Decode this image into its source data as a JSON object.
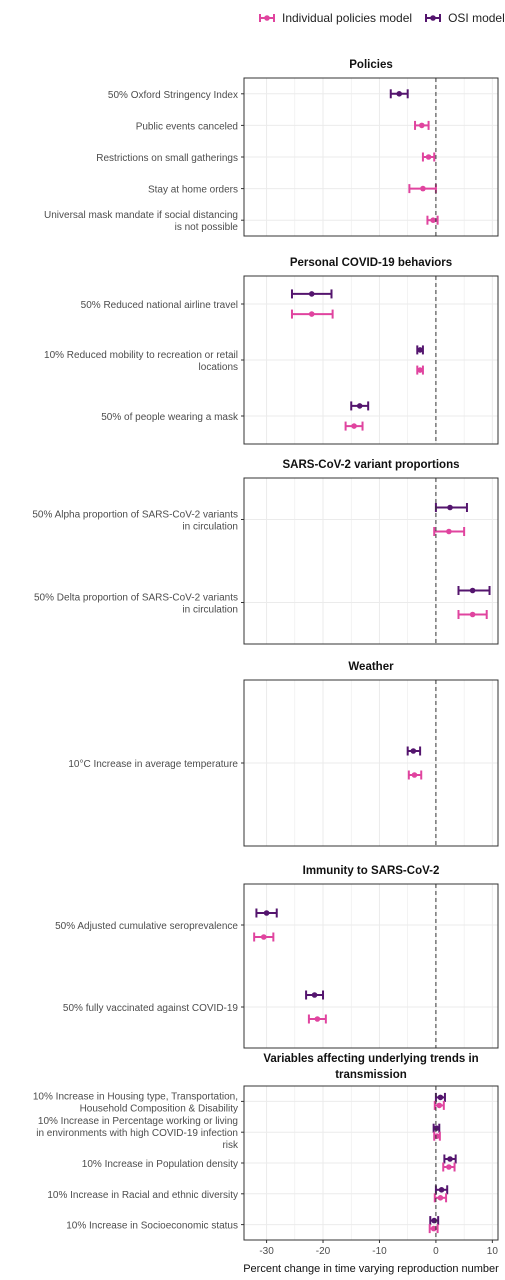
{
  "legend": {
    "individual_label": "Individual policies model",
    "osi_label": "OSI model"
  },
  "colors": {
    "individual": "#e0449f",
    "osi": "#54156e",
    "grid": "#ebebeb",
    "text": "#4d4d4d",
    "zero_line": "#333333"
  },
  "chart_data": {
    "type": "forest",
    "xlabel": "Percent change in time varying reproduction number",
    "xlim": [
      -34,
      11
    ],
    "xticks": [
      -30,
      -20,
      -10,
      0,
      10
    ],
    "xtick_labels": [
      "-30",
      "-20",
      "-10",
      "0",
      "10"
    ],
    "series": [
      {
        "key": "osi",
        "name": "OSI model"
      },
      {
        "key": "individual",
        "name": "Individual policies model"
      }
    ],
    "panels": [
      {
        "title": "Policies",
        "rows": [
          {
            "label": "50% Oxford Stringency Index",
            "osi": [
              -6.5,
              -8.0,
              -5.0
            ],
            "individual": null
          },
          {
            "label": "Public events canceled",
            "osi": null,
            "individual": [
              -2.5,
              -3.7,
              -1.3
            ]
          },
          {
            "label": "Restrictions on small gatherings",
            "osi": null,
            "individual": [
              -1.3,
              -2.3,
              -0.3
            ]
          },
          {
            "label": "Stay at home orders",
            "osi": null,
            "individual": [
              -2.3,
              -4.7,
              0.0
            ]
          },
          {
            "label": "Universal mask mandate if social distancing is not possible",
            "osi": null,
            "individual": [
              -0.5,
              -1.5,
              0.3
            ]
          }
        ]
      },
      {
        "title": "Personal COVID-19 behaviors",
        "rows": [
          {
            "label": "50% Reduced national airline travel",
            "osi": [
              -22.0,
              -25.5,
              -18.5
            ],
            "individual": [
              -22.0,
              -25.5,
              -18.3
            ]
          },
          {
            "label": "10% Reduced mobility to recreation or retail locations",
            "osi": [
              -2.8,
              -3.3,
              -2.3
            ],
            "individual": [
              -2.8,
              -3.3,
              -2.3
            ]
          },
          {
            "label": "50% of people wearing a mask",
            "osi": [
              -13.5,
              -15.0,
              -12.0
            ],
            "individual": [
              -14.5,
              -16.0,
              -13.0
            ]
          }
        ]
      },
      {
        "title": "SARS-CoV-2 variant proportions",
        "rows": [
          {
            "label": "50% Alpha proportion of SARS-CoV-2 variants in circulation",
            "osi": [
              2.5,
              0.0,
              5.5
            ],
            "individual": [
              2.3,
              -0.3,
              5.0
            ]
          },
          {
            "label": "50% Delta proportion of SARS-CoV-2 variants in circulation",
            "osi": [
              6.5,
              4.0,
              9.5
            ],
            "individual": [
              6.5,
              4.0,
              9.0
            ]
          }
        ]
      },
      {
        "title": "Weather",
        "rows": [
          {
            "label": "10°C Increase in average temperature",
            "osi": [
              -4.0,
              -5.0,
              -2.8
            ],
            "individual": [
              -3.8,
              -4.8,
              -2.6
            ]
          }
        ]
      },
      {
        "title": "Immunity to SARS-CoV-2",
        "rows": [
          {
            "label": "50% Adjusted cumulative seroprevalence",
            "osi": [
              -30.0,
              -31.8,
              -28.2
            ],
            "individual": [
              -30.5,
              -32.2,
              -28.8
            ]
          },
          {
            "label": "50% fully vaccinated against COVID-19",
            "osi": [
              -21.5,
              -23.0,
              -20.0
            ],
            "individual": [
              -21.0,
              -22.5,
              -19.5
            ]
          }
        ]
      },
      {
        "title": "Variables affecting underlying trends in transmission",
        "rows": [
          {
            "label": "10% Increase in Housing type, Transportation, Household Composition & Disability",
            "osi": [
              0.8,
              0.0,
              1.6
            ],
            "individual": [
              0.6,
              -0.2,
              1.4
            ]
          },
          {
            "label": "10% Increase in Percentage working or living in environments with high COVID-19 infection risk",
            "osi": [
              0.1,
              -0.4,
              0.6
            ],
            "individual": [
              0.2,
              -0.3,
              0.7
            ]
          },
          {
            "label": "10% Increase in Population density",
            "osi": [
              2.5,
              1.5,
              3.5
            ],
            "individual": [
              2.3,
              1.3,
              3.3
            ]
          },
          {
            "label": "10% Increase in Racial and ethnic diversity",
            "osi": [
              1.0,
              0.0,
              2.0
            ],
            "individual": [
              0.8,
              -0.2,
              1.8
            ]
          },
          {
            "label": "10% Increase in Socioeconomic status",
            "osi": [
              -0.3,
              -1.0,
              0.4
            ],
            "individual": [
              -0.4,
              -1.1,
              0.3
            ]
          }
        ]
      }
    ]
  }
}
